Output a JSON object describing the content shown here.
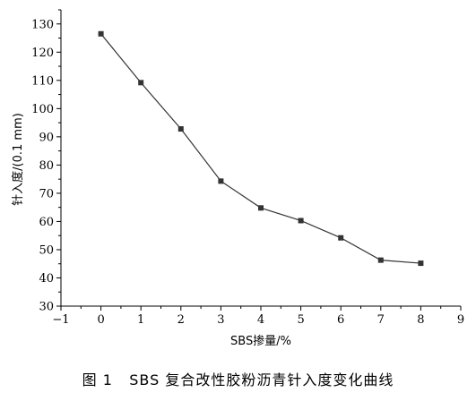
{
  "chart_data": {
    "type": "line",
    "x": [
      0,
      1,
      2,
      3,
      4,
      5,
      6,
      7,
      8
    ],
    "series": [
      {
        "values": [
          126.5,
          109.2,
          92.8,
          74.3,
          64.8,
          60.3,
          54.2,
          46.3,
          45.2
        ]
      }
    ],
    "xlabel": "SBS掺量/%",
    "ylabel": "针入度/(0.1 mm)",
    "xlim": [
      -1,
      9
    ],
    "ylim": [
      30,
      135
    ],
    "xticks": [
      -1,
      0,
      1,
      2,
      3,
      4,
      5,
      6,
      7,
      8,
      9
    ],
    "xtick_labels": [
      "−1",
      "0",
      "1",
      "2",
      "3",
      "4",
      "5",
      "6",
      "7",
      "8",
      "9"
    ],
    "yticks": [
      30,
      40,
      50,
      60,
      70,
      80,
      90,
      100,
      110,
      120,
      130
    ],
    "grid": false,
    "line_color": "#333333",
    "marker_color": "#333333"
  },
  "caption": {
    "fig_label": "图 1",
    "text": "SBS 复合改性胶粉沥青针入度变化曲线"
  }
}
